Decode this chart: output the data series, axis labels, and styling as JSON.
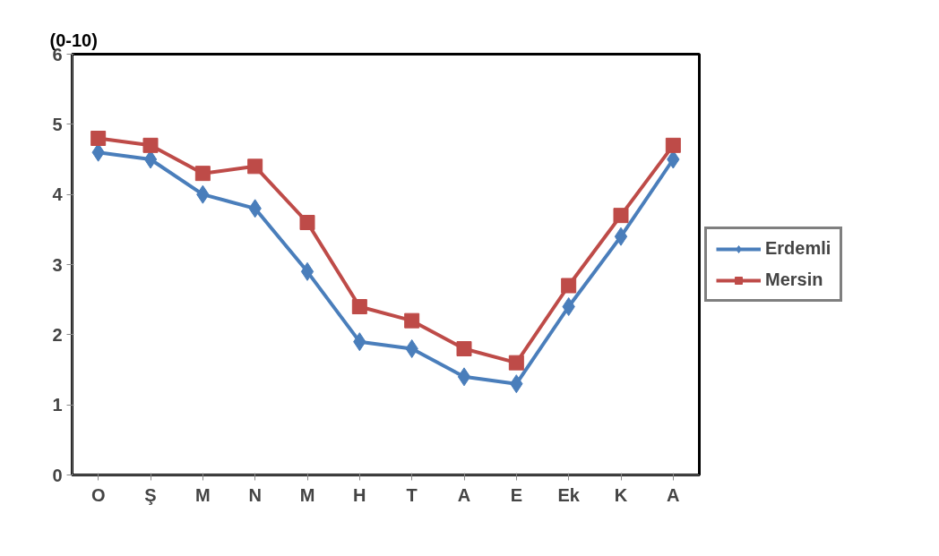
{
  "chart_data": {
    "type": "line",
    "ylabel": "(0-10)",
    "categories": [
      "O",
      "Ş",
      "M",
      "N",
      "M",
      "H",
      "T",
      "A",
      "E",
      "Ek",
      "K",
      "A"
    ],
    "series": [
      {
        "name": "Erdemli",
        "color": "#4a7ebb",
        "marker": "diamond",
        "values": [
          4.6,
          4.5,
          4.0,
          3.8,
          2.9,
          1.9,
          1.8,
          1.4,
          1.3,
          2.4,
          3.4,
          4.5
        ]
      },
      {
        "name": "Mersin",
        "color": "#be4b48",
        "marker": "square",
        "values": [
          4.8,
          4.7,
          4.3,
          4.4,
          3.6,
          2.4,
          2.2,
          1.8,
          1.6,
          2.7,
          3.7,
          4.7
        ]
      }
    ],
    "ylim": [
      0,
      6
    ],
    "yticks": [
      0,
      1,
      2,
      3,
      4,
      5,
      6
    ],
    "grid": false,
    "legend": "right",
    "line_style": "solid"
  }
}
